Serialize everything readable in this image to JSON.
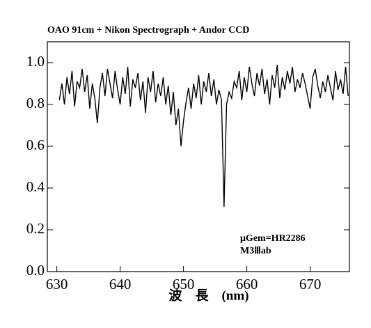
{
  "chart_data": {
    "type": "line",
    "title": "OAO 91cm + Nikon Spectrograph + Andor CCD",
    "x_label": "波　長　(nm)",
    "annotations": [
      "μGem=HR2286",
      "M3Ⅲab"
    ],
    "xlim": [
      628.5,
      676.2
    ],
    "xticks": [
      630,
      640,
      650,
      660,
      670
    ],
    "ylim": [
      0,
      1.1
    ],
    "yticks": [
      {
        "value": 0,
        "label": "0.0"
      },
      0.2,
      0.4,
      0.6,
      0.8,
      {
        "value": 1,
        "label": "1.0"
      }
    ],
    "series": [
      {
        "color": "#000000",
        "x": [
          630.4,
          630.8,
          631.2,
          631.6,
          632.0,
          632.4,
          632.8,
          633.2,
          633.6,
          634.0,
          634.4,
          634.8,
          635.2,
          635.6,
          636.0,
          636.4,
          636.8,
          637.2,
          637.6,
          638.0,
          638.4,
          638.8,
          639.2,
          639.6,
          640.0,
          640.4,
          640.8,
          641.2,
          641.6,
          642.0,
          642.4,
          642.8,
          643.2,
          643.6,
          644.0,
          644.4,
          644.8,
          645.2,
          645.6,
          646.0,
          646.4,
          646.8,
          647.2,
          647.6,
          648.0,
          648.4,
          648.8,
          649.2,
          649.6,
          650.0,
          650.4,
          650.8,
          651.2,
          651.6,
          652.0,
          652.4,
          652.8,
          653.2,
          653.6,
          654.0,
          654.4,
          654.8,
          655.2,
          655.6,
          656.0,
          656.4,
          656.8,
          657.2,
          657.6,
          658.0,
          658.4,
          658.8,
          659.2,
          659.6,
          660.0,
          660.4,
          660.8,
          661.2,
          661.6,
          662.0,
          662.4,
          662.8,
          663.2,
          663.6,
          664.0,
          664.4,
          664.8,
          665.2,
          665.6,
          666.0,
          666.4,
          666.8,
          667.2,
          667.6,
          668.0,
          668.4,
          668.8,
          669.2,
          669.6,
          670.0,
          670.4,
          670.8,
          671.2,
          671.6,
          672.0,
          672.4,
          672.8,
          673.2,
          673.6,
          674.0,
          674.4,
          674.8,
          675.2,
          675.6,
          676.0
        ],
        "values": [
          0.82,
          0.9,
          0.8,
          0.93,
          0.85,
          0.96,
          0.79,
          0.91,
          0.88,
          0.97,
          0.86,
          0.94,
          0.78,
          0.9,
          0.83,
          0.71,
          0.88,
          0.95,
          0.84,
          0.97,
          0.9,
          0.83,
          0.96,
          0.87,
          0.8,
          0.93,
          0.85,
          0.98,
          0.79,
          0.92,
          0.88,
          0.95,
          0.82,
          0.91,
          0.76,
          0.93,
          0.86,
          0.96,
          0.81,
          0.9,
          0.84,
          0.93,
          0.8,
          0.89,
          0.75,
          0.86,
          0.7,
          0.78,
          0.6,
          0.72,
          0.81,
          0.88,
          0.78,
          0.9,
          0.83,
          0.94,
          0.8,
          0.91,
          0.86,
          0.95,
          0.84,
          0.92,
          0.8,
          0.87,
          0.82,
          0.31,
          0.8,
          0.86,
          0.83,
          0.91,
          0.88,
          0.96,
          0.82,
          0.93,
          0.86,
          0.98,
          0.9,
          0.84,
          0.95,
          0.89,
          0.97,
          0.85,
          0.92,
          0.8,
          0.94,
          0.88,
          0.99,
          0.83,
          0.93,
          0.87,
          0.96,
          0.9,
          0.98,
          0.86,
          0.92,
          0.88,
          0.95,
          0.9,
          0.84,
          0.78,
          0.93,
          0.97,
          0.89,
          0.83,
          0.91,
          0.86,
          0.94,
          0.88,
          0.82,
          0.96,
          0.87,
          0.92,
          0.85,
          0.98,
          0.84
        ]
      }
    ]
  }
}
